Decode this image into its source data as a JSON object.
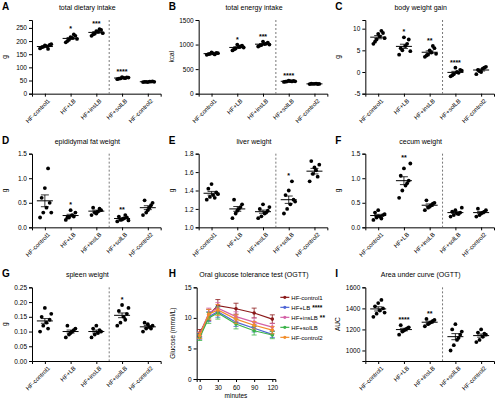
{
  "chart_data": [
    {
      "panel": "A",
      "type": "strip",
      "title": "total dietary intake",
      "y_label": "g",
      "color": "#000000",
      "categories": [
        "HF-control1",
        "HF+LB",
        "HF+insLB",
        "HF+solLB",
        "HF-control2"
      ],
      "ylim": [
        0,
        280
      ],
      "yticks": [
        0,
        50,
        100,
        150,
        200,
        250
      ],
      "points": [
        [
          172,
          178,
          181,
          185,
          176,
          183,
          170,
          188
        ],
        [
          195,
          205,
          212,
          220,
          200,
          215,
          225,
          208
        ],
        [
          220,
          228,
          235,
          242,
          225,
          238,
          245,
          230
        ],
        [
          55,
          58,
          60,
          62,
          57,
          63,
          59,
          61
        ],
        [
          44,
          45,
          46,
          47,
          45,
          44,
          46,
          45
        ]
      ],
      "means": [
        179.1,
        210,
        232.9,
        59.4,
        45.3
      ],
      "sem": [
        2.2,
        3.6,
        3.1,
        0.9,
        0.4
      ],
      "annotations": [
        null,
        "*",
        "***",
        "****",
        null
      ]
    },
    {
      "panel": "B",
      "type": "strip",
      "title": "total energy intake",
      "y_label": "kcal",
      "color": "#000000",
      "categories": [
        "HF-control1",
        "HF+LB",
        "HF+insLB",
        "HF+solLB",
        "HF-control2"
      ],
      "ylim": [
        0,
        1500
      ],
      "yticks": [
        0,
        500,
        1000,
        1500
      ],
      "points": [
        [
          790,
          810,
          820,
          830,
          805,
          840,
          800,
          825
        ],
        [
          880,
          920,
          950,
          980,
          900,
          1000,
          960,
          940
        ],
        [
          960,
          990,
          1010,
          1040,
          980,
          1060,
          1020,
          1000
        ],
        [
          240,
          250,
          255,
          260,
          245,
          265,
          250,
          252
        ],
        [
          195,
          200,
          205,
          198,
          202,
          200,
          197
        ]
      ],
      "means": [
        815,
        941.25,
        1007.5,
        252.1,
        199.6
      ],
      "sem": [
        6,
        14,
        12,
        3,
        1.2
      ],
      "annotations": [
        null,
        "*",
        "***",
        "****",
        null
      ]
    },
    {
      "panel": "C",
      "type": "strip",
      "title": "body weight gain",
      "y_label": "g",
      "color": "#000000",
      "categories": [
        "HF-control1",
        "HF+LB",
        "HF+insLB",
        "HF+solLB",
        "HF-control2"
      ],
      "ylim": [
        -5,
        12
      ],
      "yticks": [
        -5,
        0,
        5,
        10
      ],
      "points": [
        [
          6.5,
          7.5,
          8.2,
          9.0,
          7.0,
          8.8,
          9.5,
          7.8
        ],
        [
          4.0,
          5.0,
          6.0,
          7.5,
          5.5,
          8.0,
          6.5,
          4.8
        ],
        [
          3.5,
          4.0,
          4.5,
          5.5,
          3.8,
          5.0,
          6.0,
          4.2
        ],
        [
          -1.0,
          -0.5,
          0.0,
          0.5,
          -0.8,
          1.0,
          -0.2,
          0.3
        ],
        [
          -0.5,
          0.2,
          0.8,
          1.2,
          0.5,
          0.0,
          1.0
        ]
      ],
      "means": [
        8.04,
        5.91,
        4.56,
        -0.09,
        0.46
      ],
      "sem": [
        0.37,
        0.5,
        0.3,
        0.24,
        0.23
      ],
      "annotations": [
        null,
        "*",
        "**",
        "****",
        null
      ]
    },
    {
      "panel": "D",
      "type": "strip",
      "title": "epididymal fat weight",
      "y_label": "g",
      "color": "#000000",
      "categories": [
        "HF-control1",
        "HF+LB",
        "HF+insLB",
        "HF+solLB",
        "HF-control2"
      ],
      "ylim": [
        0,
        1.5
      ],
      "yticks": [
        {
          "value": 0,
          "label": "0.0"
        },
        0.5,
        {
          "value": 1,
          "label": "1.0"
        },
        1.5
      ],
      "points": [
        [
          0.2,
          0.3,
          0.4,
          0.5,
          0.6,
          0.8,
          1.2,
          0.3
        ],
        [
          0.15,
          0.2,
          0.25,
          0.3,
          0.2,
          0.35,
          0.22
        ],
        [
          0.25,
          0.3,
          0.32,
          0.35,
          0.4,
          0.28,
          0.38
        ],
        [
          0.12,
          0.15,
          0.18,
          0.2,
          0.22,
          0.16,
          0.25,
          0.14
        ],
        [
          0.25,
          0.3,
          0.4,
          0.5,
          0.55,
          0.35,
          0.45
        ]
      ],
      "means": [
        0.54,
        0.24,
        0.33,
        0.18,
        0.4
      ],
      "sem": [
        0.12,
        0.025,
        0.02,
        0.015,
        0.04
      ],
      "annotations": [
        null,
        "*",
        null,
        "**",
        null
      ]
    },
    {
      "panel": "E",
      "type": "strip",
      "title": "liver weight",
      "y_label": "g",
      "color": "#000000",
      "categories": [
        "HF-control1",
        "HF+LB",
        "HF+insLB",
        "HF+solLB",
        "HF-control2"
      ],
      "ylim": [
        1.0,
        1.8
      ],
      "yticks": [
        {
          "value": 1,
          "label": "1.0"
        },
        1.2,
        1.4,
        1.6,
        1.8
      ],
      "points": [
        [
          1.3,
          1.33,
          1.35,
          1.38,
          1.42,
          1.47,
          1.32,
          1.36
        ],
        [
          1.1,
          1.15,
          1.2,
          1.25,
          1.3,
          1.18,
          1.22
        ],
        [
          1.1,
          1.12,
          1.15,
          1.18,
          1.2,
          1.25,
          1.16,
          1.22
        ],
        [
          1.15,
          1.2,
          1.25,
          1.3,
          1.35,
          1.4,
          1.5,
          1.28
        ],
        [
          1.5,
          1.58,
          1.62,
          1.68,
          1.72,
          1.65,
          1.55
        ]
      ],
      "means": [
        1.37,
        1.2,
        1.17,
        1.3,
        1.61
      ],
      "sem": [
        0.02,
        0.026,
        0.017,
        0.04,
        0.03
      ],
      "annotations": [
        null,
        null,
        null,
        "*",
        null
      ]
    },
    {
      "panel": "F",
      "type": "strip",
      "title": "cecum weight",
      "y_label": "g",
      "color": "#000000",
      "categories": [
        "HF-control1",
        "HF+LB",
        "HF+insLB",
        "HF+solLB",
        "HF-control2"
      ],
      "ylim": [
        0,
        1.5
      ],
      "yticks": [
        {
          "value": 0,
          "label": "0.0"
        },
        0.5,
        {
          "value": 1,
          "label": "1.0"
        },
        1.5
      ],
      "points": [
        [
          0.15,
          0.2,
          0.22,
          0.25,
          0.3,
          0.35,
          0.18,
          0.27
        ],
        [
          0.6,
          0.75,
          0.85,
          0.95,
          1.05,
          1.2,
          0.9,
          1.3
        ],
        [
          0.35,
          0.4,
          0.45,
          0.5,
          0.55,
          0.42,
          0.48
        ],
        [
          0.22,
          0.25,
          0.28,
          0.3,
          0.32,
          0.35,
          0.27,
          0.4
        ],
        [
          0.22,
          0.25,
          0.3,
          0.35,
          0.38,
          0.28,
          0.32
        ]
      ],
      "means": [
        0.24,
        0.95,
        0.45,
        0.3,
        0.3
      ],
      "sem": [
        0.024,
        0.08,
        0.026,
        0.02,
        0.021
      ],
      "annotations": [
        null,
        "**",
        null,
        null,
        null
      ]
    },
    {
      "panel": "G",
      "type": "strip",
      "title": "spleen weight",
      "y_label": "g",
      "color": "#000000",
      "categories": [
        "HF-control1",
        "HF+LB",
        "HF+insLB",
        "HF+solLB",
        "HF-control2"
      ],
      "ylim": [
        0,
        0.25
      ],
      "yticks": [
        {
          "value": 0,
          "label": "0.00"
        },
        0.05,
        {
          "value": 0.1,
          "label": "0.10"
        },
        0.15,
        {
          "value": 0.2,
          "label": "0.20"
        },
        0.25
      ],
      "points": [
        [
          0.1,
          0.12,
          0.13,
          0.14,
          0.15,
          0.18,
          0.11,
          0.16
        ],
        [
          0.08,
          0.09,
          0.1,
          0.11,
          0.12,
          0.095,
          0.105
        ],
        [
          0.08,
          0.09,
          0.095,
          0.1,
          0.11,
          0.12,
          0.105
        ],
        [
          0.12,
          0.13,
          0.15,
          0.16,
          0.17,
          0.19,
          0.14,
          0.18
        ],
        [
          0.1,
          0.11,
          0.115,
          0.12,
          0.13,
          0.125,
          0.11
        ]
      ],
      "means": [
        0.136,
        0.1,
        0.1,
        0.155,
        0.116
      ],
      "sem": [
        0.008,
        0.005,
        0.005,
        0.008,
        0.004
      ],
      "annotations": [
        null,
        null,
        null,
        "*",
        null
      ]
    },
    {
      "panel": "H",
      "type": "line",
      "title": "Oral glucose tolerance test (OGTT)",
      "x_label": "minutes",
      "y_label": "Glucose (mmol/L)",
      "x": [
        0,
        15,
        30,
        60,
        90,
        120
      ],
      "xlim": [
        -5,
        125
      ],
      "xticks": [
        0,
        30,
        60,
        90,
        120
      ],
      "ylim": [
        0,
        15
      ],
      "yticks": [
        0,
        5,
        10,
        15
      ],
      "marker": "circle",
      "legend": "right",
      "series": [
        {
          "name": "HF-control1",
          "color": "#8b1a1a",
          "values": [
            7.5,
            10.5,
            12.0,
            11.5,
            10.8,
            9.8
          ],
          "errors": [
            0.6,
            0.9,
            1.0,
            0.9,
            0.8,
            0.7
          ]
        },
        {
          "name": "HF+LB",
          "color": "#4f66d6",
          "values": [
            7.0,
            10.2,
            11.0,
            9.3,
            8.3,
            7.3
          ],
          "errors": [
            0.5,
            0.8,
            0.9,
            0.7,
            0.6,
            0.5
          ],
          "stars": "****"
        },
        {
          "name": "HF+insLB",
          "color": "#d462a8",
          "values": [
            7.2,
            10.8,
            11.6,
            10.2,
            9.3,
            8.5
          ],
          "errors": [
            0.5,
            0.8,
            0.9,
            0.8,
            0.7,
            0.6
          ],
          "stars": "**"
        },
        {
          "name": "HF+solLB",
          "color": "#3cb44b",
          "values": [
            6.8,
            10.0,
            10.8,
            9.0,
            7.9,
            7.2
          ],
          "errors": [
            0.5,
            0.9,
            1.0,
            0.8,
            0.7,
            0.6
          ]
        },
        {
          "name": "HF-control2",
          "color": "#f28e2b",
          "values": [
            7.1,
            10.6,
            11.3,
            9.8,
            8.8,
            8.0
          ],
          "errors": [
            0.5,
            0.8,
            0.9,
            0.7,
            0.6,
            0.6
          ]
        }
      ]
    },
    {
      "panel": "I",
      "type": "strip",
      "title": "Area under curve (OGTT)",
      "y_label": "AUC",
      "color": "#000000",
      "categories": [
        "HF-control1",
        "HF+LB",
        "HF+insLB",
        "HF+solLB",
        "HF-control2"
      ],
      "ylim": [
        900,
        1600
      ],
      "yticks": [
        1000,
        1200,
        1400,
        1600
      ],
      "points": [
        [
          1320,
          1350,
          1380,
          1400,
          1420,
          1450,
          1480,
          1360
        ],
        [
          1150,
          1180,
          1200,
          1220,
          1240,
          1190,
          1210
        ],
        [
          1230,
          1250,
          1270,
          1290,
          1300,
          1260,
          1280
        ],
        [
          1000,
          1050,
          1100,
          1150,
          1200,
          1250,
          1120,
          1180
        ],
        [
          1080,
          1100,
          1130,
          1150,
          1170,
          1200,
          1160
        ]
      ],
      "means": [
        1395,
        1198.6,
        1268.6,
        1131.25,
        1141.4
      ],
      "sem": [
        20,
        12,
        9.5,
        29,
        15
      ],
      "annotations": [
        null,
        "****",
        "**",
        null,
        null
      ]
    }
  ]
}
